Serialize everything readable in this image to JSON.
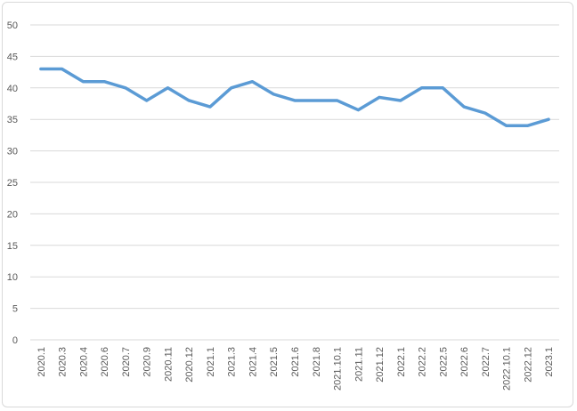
{
  "chart_data": {
    "type": "line",
    "title": "",
    "xlabel": "",
    "ylabel": "",
    "ylim": [
      0,
      50
    ],
    "yticks": [
      0,
      5,
      10,
      15,
      20,
      25,
      30,
      35,
      40,
      45,
      50
    ],
    "grid": true,
    "legend": "none",
    "line_color": "#5b9bd5",
    "categories": [
      "2020.1",
      "2020.3",
      "2020.4",
      "2020.6",
      "2020.7",
      "2020.9",
      "2020.11",
      "2020.12",
      "2021.1",
      "2021.3",
      "2021.4",
      "2021.5",
      "2021.6",
      "2021.8",
      "2021.10.1",
      "2021.11",
      "2021.12",
      "2022.1",
      "2022.2",
      "2022.5",
      "2022.6",
      "2022.7",
      "2022.10.1",
      "2022.12",
      "2023.1"
    ],
    "series": [
      {
        "values": [
          43,
          43,
          41,
          41,
          40,
          38,
          40,
          38,
          37,
          40,
          41,
          39,
          38,
          38,
          38,
          36.5,
          38.5,
          38,
          40,
          40,
          37,
          36,
          34,
          34,
          35
        ]
      }
    ]
  }
}
